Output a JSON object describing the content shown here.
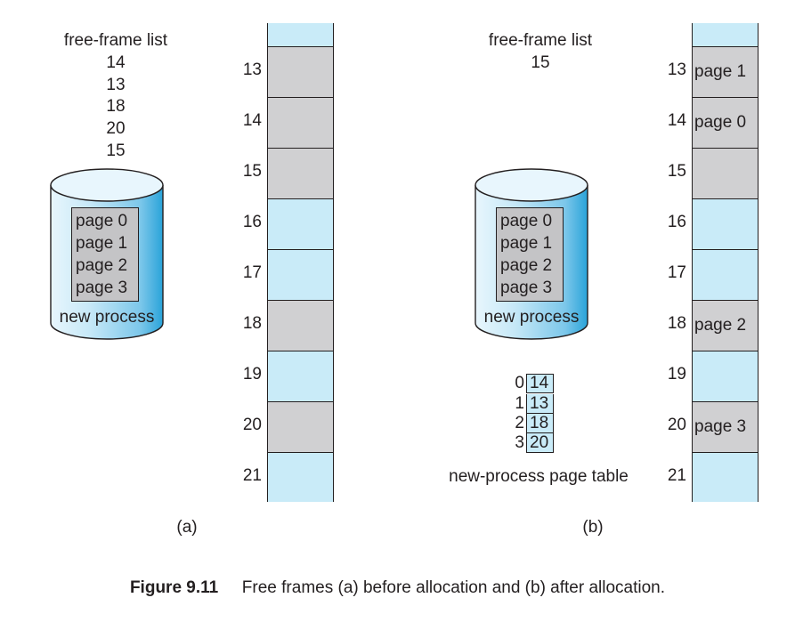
{
  "panel_a": {
    "free_frame_title": "free-frame list",
    "free_frames": [
      "14",
      "13",
      "18",
      "20",
      "15"
    ],
    "disk_pages": [
      "page 0",
      "page 1",
      "page 2",
      "page 3"
    ],
    "disk_label": "new process",
    "frames": [
      {
        "number": "13",
        "state": "used",
        "content": ""
      },
      {
        "number": "14",
        "state": "used",
        "content": ""
      },
      {
        "number": "15",
        "state": "used",
        "content": ""
      },
      {
        "number": "16",
        "state": "free",
        "content": ""
      },
      {
        "number": "17",
        "state": "free",
        "content": ""
      },
      {
        "number": "18",
        "state": "used",
        "content": ""
      },
      {
        "number": "19",
        "state": "free",
        "content": ""
      },
      {
        "number": "20",
        "state": "used",
        "content": ""
      },
      {
        "number": "21",
        "state": "free",
        "content": ""
      }
    ],
    "label": "(a)"
  },
  "panel_b": {
    "free_frame_title": "free-frame list",
    "free_frames": [
      "15"
    ],
    "disk_pages": [
      "page 0",
      "page 1",
      "page 2",
      "page 3"
    ],
    "disk_label": "new process",
    "page_table": [
      {
        "index": "0",
        "frame": "14"
      },
      {
        "index": "1",
        "frame": "13"
      },
      {
        "index": "2",
        "frame": "18"
      },
      {
        "index": "3",
        "frame": "20"
      }
    ],
    "page_table_label": "new-process page table",
    "frames": [
      {
        "number": "13",
        "state": "used",
        "content": "page 1"
      },
      {
        "number": "14",
        "state": "used",
        "content": "page 0"
      },
      {
        "number": "15",
        "state": "used",
        "content": ""
      },
      {
        "number": "16",
        "state": "free",
        "content": ""
      },
      {
        "number": "17",
        "state": "free",
        "content": ""
      },
      {
        "number": "18",
        "state": "used",
        "content": "page 2"
      },
      {
        "number": "19",
        "state": "free",
        "content": ""
      },
      {
        "number": "20",
        "state": "used",
        "content": "page 3"
      },
      {
        "number": "21",
        "state": "free",
        "content": ""
      }
    ],
    "label": "(b)"
  },
  "caption": {
    "figure": "Figure 9.11",
    "text": "Free frames (a) before allocation and (b) after allocation."
  },
  "colors": {
    "free_frame": "#c9ebf8",
    "used_frame": "#d0d0d2",
    "disk_blue": "#9fd6ef",
    "disk_dark_blue": "#29a3d9",
    "page_box": "#c4c4c6"
  }
}
